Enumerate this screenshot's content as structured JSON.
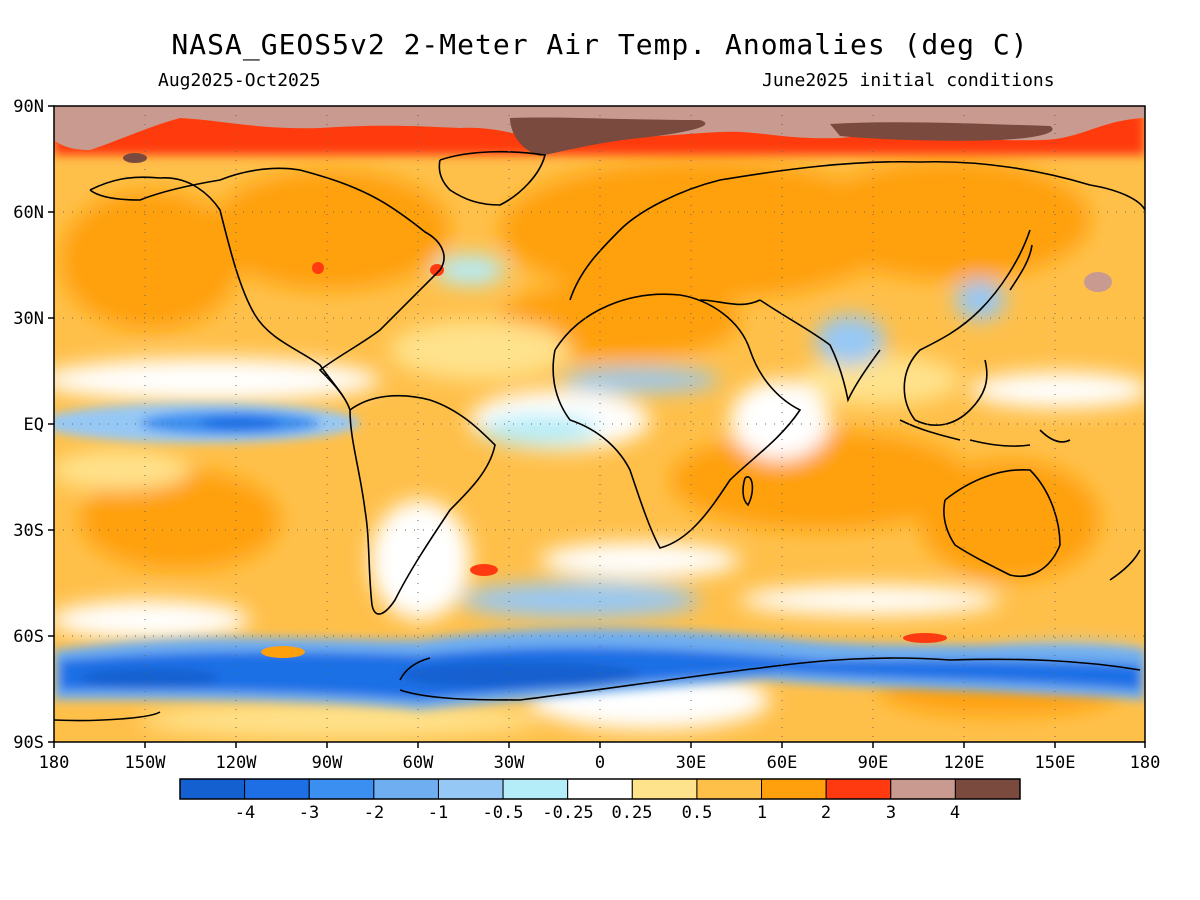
{
  "title": "NASA_GEOS5v2 2-Meter Air Temp. Anomalies (deg C)",
  "subtitle_left": "Aug2025-Oct2025",
  "subtitle_right": "June2025 initial conditions",
  "map": {
    "lat_labels": [
      "90N",
      "60N",
      "30N",
      "EQ",
      "30S",
      "60S",
      "90S"
    ],
    "lon_labels": [
      "180",
      "150W",
      "120W",
      "90W",
      "60W",
      "30W",
      "0",
      "30E",
      "60E",
      "90E",
      "120E",
      "150E",
      "180"
    ]
  },
  "colorbar": {
    "colors": [
      "#1560d0",
      "#1e6fe6",
      "#3a8ff0",
      "#6faef0",
      "#96c8f5",
      "#b4ecf8",
      "#ffffff",
      "#ffe28c",
      "#ffc04a",
      "#ffa00c",
      "#ff3a10",
      "#c89a90",
      "#7a4a3e"
    ],
    "labels": [
      "-4",
      "-3",
      "-2",
      "-1",
      "-0.5",
      "-0.25",
      "0.25",
      "0.5",
      "1",
      "2",
      "3",
      "4"
    ]
  }
}
